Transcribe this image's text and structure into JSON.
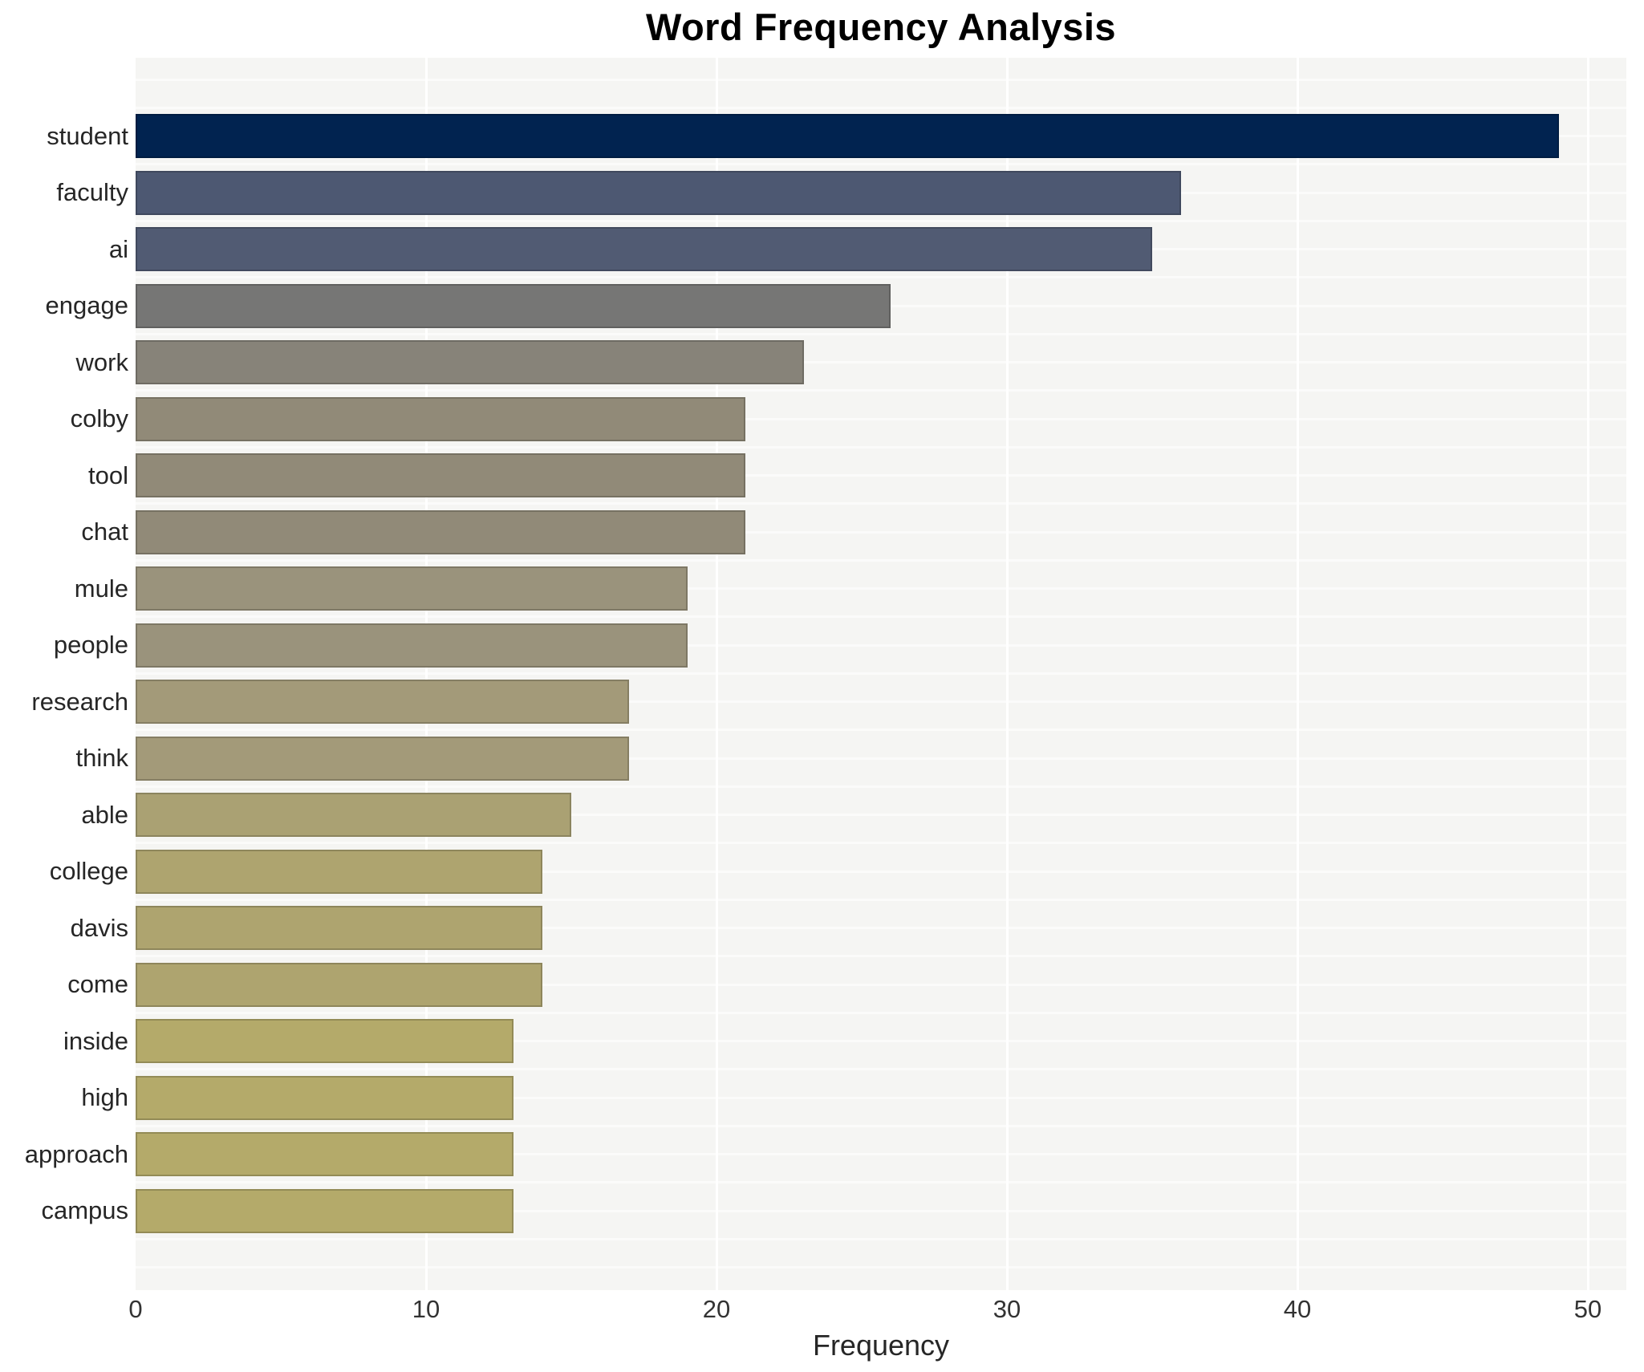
{
  "chart_data": {
    "type": "bar",
    "orientation": "horizontal",
    "title": "Word Frequency Analysis",
    "xlabel": "Frequency",
    "ylabel": "",
    "categories": [
      "student",
      "faculty",
      "ai",
      "engage",
      "work",
      "colby",
      "tool",
      "chat",
      "mule",
      "people",
      "research",
      "think",
      "able",
      "college",
      "davis",
      "come",
      "inside",
      "high",
      "approach",
      "campus"
    ],
    "values": [
      49,
      36,
      35,
      26,
      23,
      21,
      21,
      21,
      19,
      19,
      17,
      17,
      15,
      14,
      14,
      14,
      13,
      13,
      13,
      13
    ],
    "bar_colors": [
      "#012350",
      "#4d5872",
      "#515b73",
      "#767675",
      "#878379",
      "#918a78",
      "#918a78",
      "#918a78",
      "#9a937c",
      "#9a937c",
      "#a39a79",
      "#a39a79",
      "#aaa173",
      "#aea46f",
      "#aea46f",
      "#aea46f",
      "#b4aa6a",
      "#b4aa6a",
      "#b4aa6a",
      "#b4aa6a"
    ],
    "xticks": [
      "0",
      "10",
      "20",
      "30",
      "40",
      "50"
    ],
    "xtick_values": [
      0,
      10,
      20,
      30,
      40,
      50
    ],
    "xlim": [
      0,
      51.3
    ],
    "grid": "on",
    "legend": "none",
    "plot_background": "#f5f5f3",
    "grid_color": "#ffffff"
  }
}
